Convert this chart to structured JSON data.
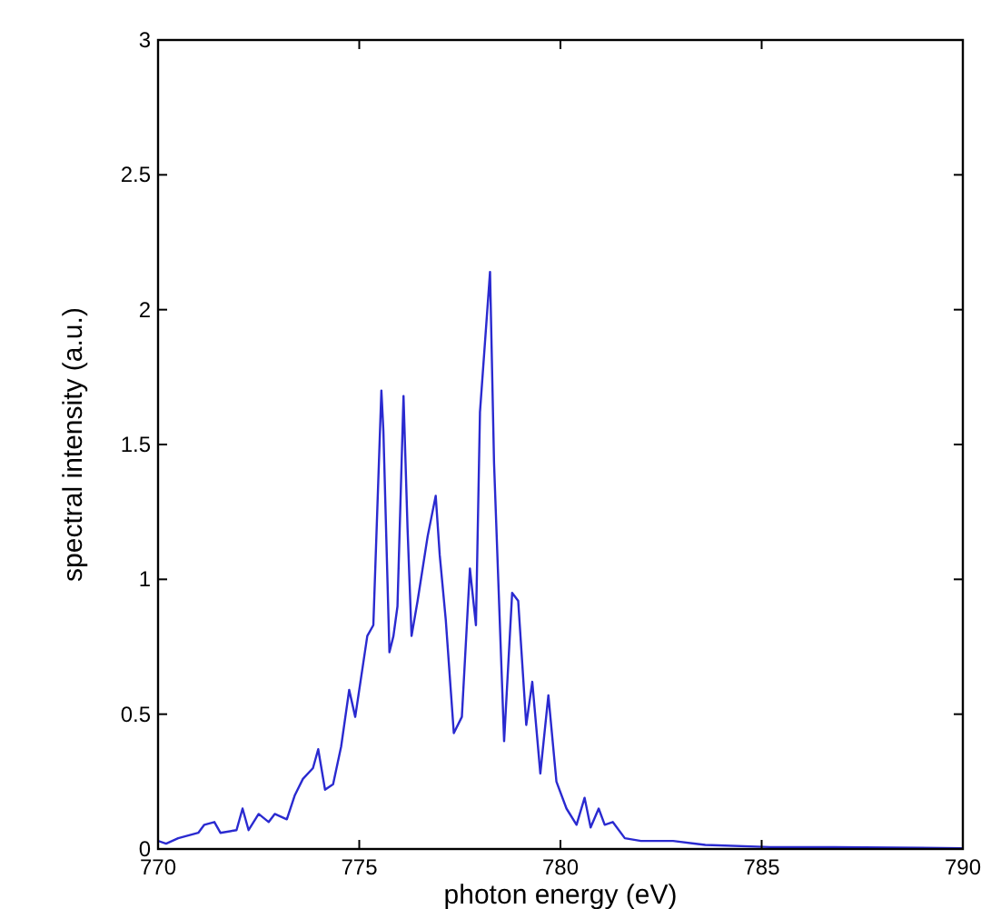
{
  "chart_data": {
    "type": "line",
    "xlabel": "photon energy (eV)",
    "ylabel": "spectral intensity (a.u.)",
    "xlim": [
      770,
      790
    ],
    "xticks": [
      770,
      775,
      780,
      785,
      790
    ],
    "ylim": [
      0,
      3
    ],
    "yticks": [
      0,
      0.5,
      1,
      1.5,
      2,
      2.5,
      3
    ],
    "grid": false,
    "marker": "none",
    "line_style": "solid",
    "series": [
      {
        "color": "#2a2ad0",
        "x": [
          770,
          770.2,
          770.5,
          771,
          771.15,
          771.4,
          771.55,
          771.95,
          772.1,
          772.25,
          772.5,
          772.75,
          772.9,
          773.2,
          773.4,
          773.6,
          773.85,
          773.98,
          774.15,
          774.35,
          774.55,
          774.75,
          774.9,
          775.2,
          775.35,
          775.55,
          775.6,
          775.75,
          775.85,
          775.95,
          776.1,
          776.2,
          776.3,
          776.45,
          776.7,
          776.9,
          777,
          777.15,
          777.35,
          777.55,
          777.75,
          777.9,
          778,
          778.25,
          778.35,
          778.6,
          778.8,
          778.95,
          779.15,
          779.3,
          779.5,
          779.7,
          779.9,
          780.15,
          780.4,
          780.6,
          780.75,
          780.95,
          781.1,
          781.3,
          781.6,
          782,
          782.8,
          783.6,
          785.2,
          786.8,
          790
        ],
        "values": [
          0.03,
          0.02,
          0.04,
          0.06,
          0.09,
          0.1,
          0.06,
          0.07,
          0.15,
          0.07,
          0.13,
          0.1,
          0.13,
          0.11,
          0.2,
          0.26,
          0.3,
          0.37,
          0.22,
          0.24,
          0.38,
          0.59,
          0.49,
          0.79,
          0.83,
          1.7,
          1.55,
          0.73,
          0.79,
          0.9,
          1.68,
          1.19,
          0.79,
          0.92,
          1.16,
          1.31,
          1.09,
          0.85,
          0.43,
          0.49,
          1.04,
          0.83,
          1.62,
          2.14,
          1.43,
          0.4,
          0.95,
          0.92,
          0.46,
          0.62,
          0.28,
          0.57,
          0.25,
          0.15,
          0.09,
          0.19,
          0.08,
          0.15,
          0.09,
          0.1,
          0.04,
          0.03,
          0.03,
          0.015,
          0.007,
          0.007,
          0.003
        ]
      }
    ]
  }
}
